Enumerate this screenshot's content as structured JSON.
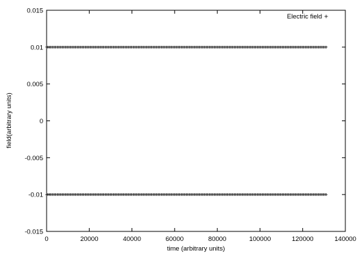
{
  "chart_data": {
    "type": "scatter",
    "xlabel": "time (arbitrary units)",
    "ylabel": "field(arbitrary units)",
    "xlim": [
      0,
      140000
    ],
    "ylim": [
      -0.015,
      0.015
    ],
    "xticks": [
      0,
      20000,
      40000,
      60000,
      80000,
      100000,
      120000,
      140000
    ],
    "xtick_labels": [
      "0",
      "20000",
      "40000",
      "60000",
      "80000",
      "100000",
      "120000",
      "140000"
    ],
    "yticks": [
      -0.015,
      -0.01,
      -0.005,
      0,
      0.005,
      0.01,
      0.015
    ],
    "ytick_labels": [
      "-0.015",
      "-0.01",
      "-0.005",
      "0",
      "0.005",
      "0.01",
      "0.015"
    ],
    "grid": false,
    "legend_position": "top-right",
    "marker": "+",
    "color": "#000000",
    "series": [
      {
        "name": "Electric field",
        "x_range": [
          0,
          131072
        ],
        "y_values": [
          0.01,
          -0.01
        ],
        "point_count": 240
      }
    ]
  }
}
